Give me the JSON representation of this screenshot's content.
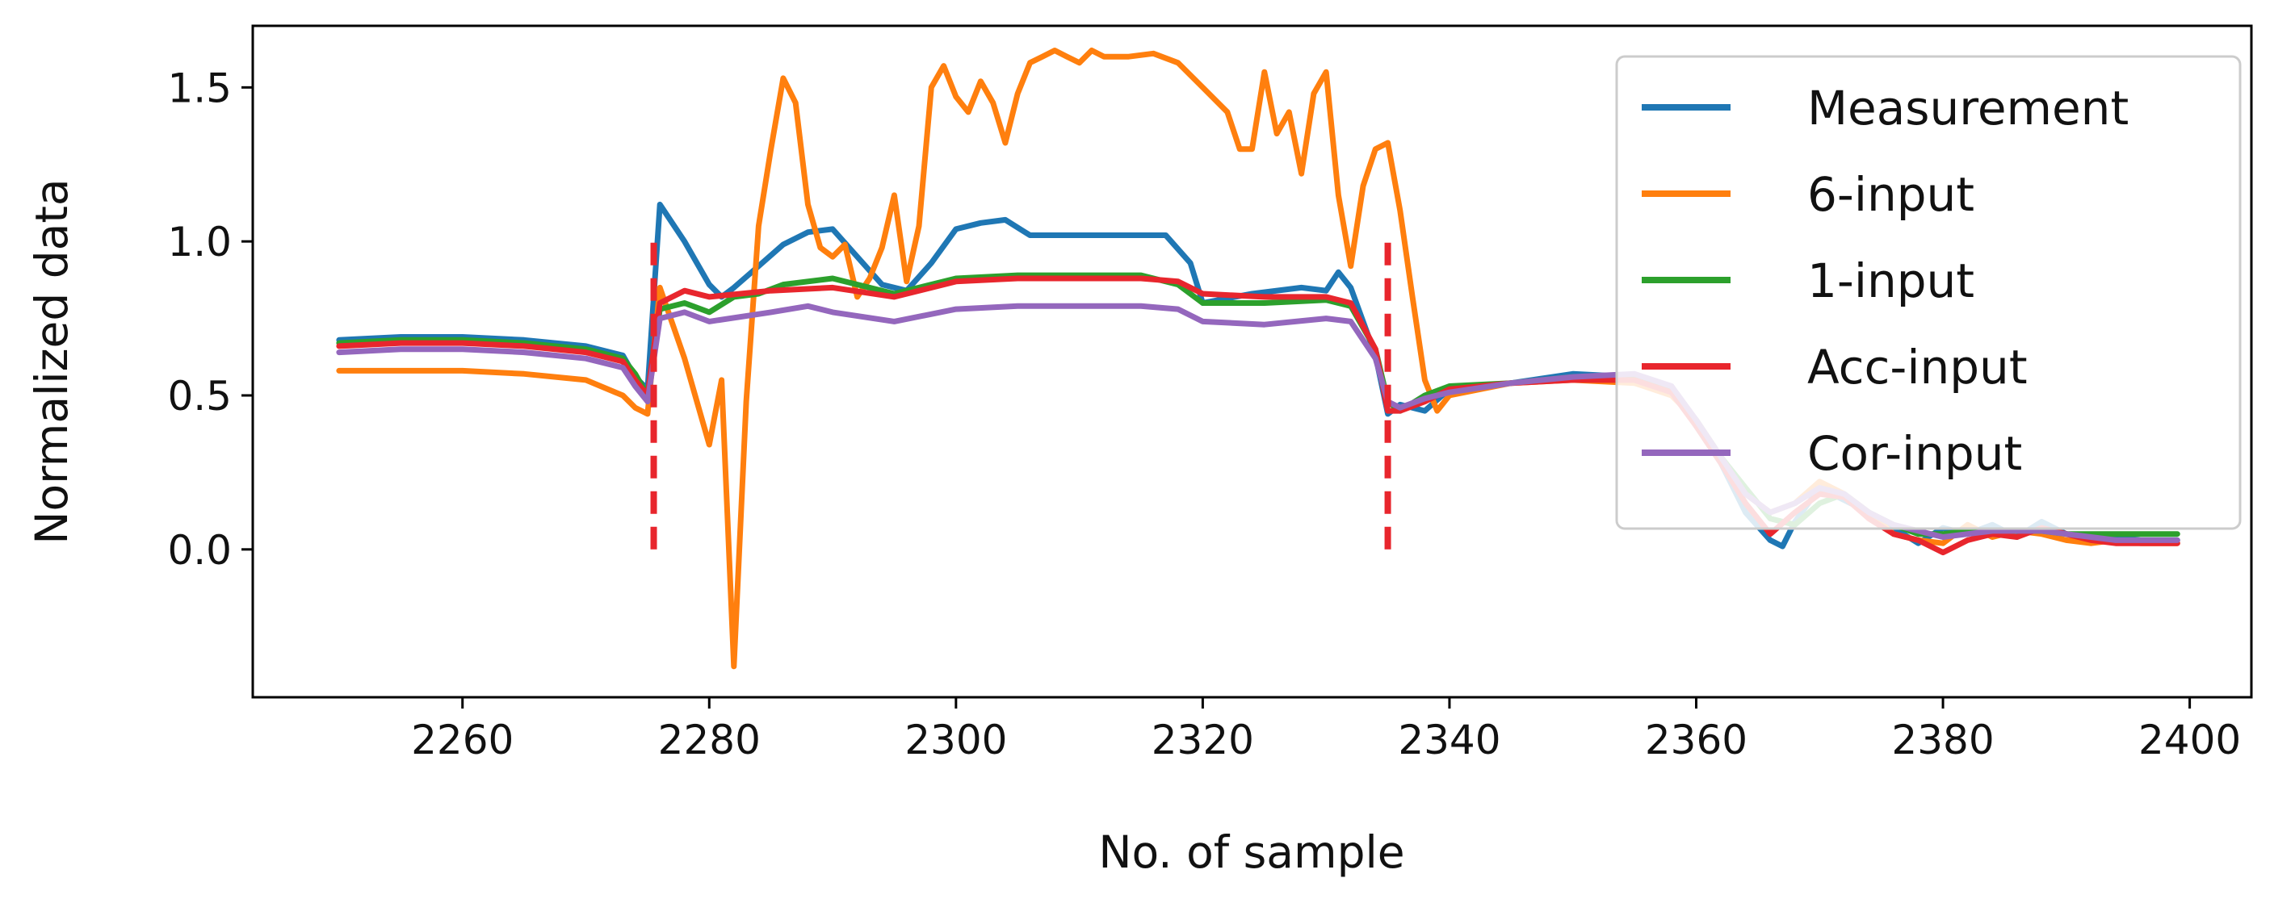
{
  "chart_data": {
    "type": "line",
    "title": "",
    "xlabel": "No. of sample",
    "ylabel": "Normalized data",
    "xlim": [
      2243,
      2405
    ],
    "ylim": [
      -0.48,
      1.7
    ],
    "xticks": [
      2260,
      2280,
      2300,
      2320,
      2340,
      2360,
      2380,
      2400
    ],
    "yticks": [
      0.0,
      0.5,
      1.0,
      1.5
    ],
    "ytick_labels": [
      "0.0",
      "0.5",
      "1.0",
      "1.5"
    ],
    "grid": false,
    "legend_position": "top-right",
    "colors": {
      "Measurement": "#1f77b4",
      "6-input": "#ff7f0e",
      "1-input": "#2ca02c",
      "Acc-input": "#e8262d",
      "Cor-input": "#9467bd",
      "markers": "#e8262d"
    },
    "series": [
      {
        "name": "Measurement",
        "x": [
          2250,
          2255,
          2260,
          2265,
          2270,
          2273,
          2274,
          2275,
          2276,
          2278,
          2280,
          2281,
          2282,
          2284,
          2286,
          2288,
          2290,
          2292,
          2294,
          2296,
          2298,
          2300,
          2302,
          2304,
          2306,
          2310,
          2314,
          2317,
          2319,
          2320,
          2324,
          2328,
          2330,
          2331,
          2332,
          2334,
          2335,
          2336,
          2338,
          2340,
          2345,
          2350,
          2355,
          2358,
          2360,
          2362,
          2364,
          2366,
          2367,
          2368,
          2370,
          2372,
          2374,
          2376,
          2378,
          2380,
          2382,
          2384,
          2386,
          2388,
          2390,
          2392,
          2394,
          2396,
          2399
        ],
        "y": [
          0.68,
          0.69,
          0.69,
          0.68,
          0.66,
          0.63,
          0.56,
          0.52,
          1.12,
          1.0,
          0.86,
          0.82,
          0.85,
          0.92,
          0.99,
          1.03,
          1.04,
          0.95,
          0.86,
          0.84,
          0.93,
          1.04,
          1.06,
          1.07,
          1.02,
          1.02,
          1.02,
          1.02,
          0.93,
          0.8,
          0.83,
          0.85,
          0.84,
          0.9,
          0.85,
          0.63,
          0.44,
          0.47,
          0.45,
          0.52,
          0.54,
          0.57,
          0.56,
          0.53,
          0.4,
          0.28,
          0.12,
          0.03,
          0.01,
          0.09,
          0.2,
          0.16,
          0.12,
          0.07,
          0.02,
          0.07,
          0.05,
          0.08,
          0.04,
          0.09,
          0.05,
          0.03,
          0.04,
          0.03,
          0.03
        ]
      },
      {
        "name": "6-input",
        "x": [
          2250,
          2255,
          2260,
          2265,
          2270,
          2273,
          2274,
          2275,
          2276,
          2278,
          2279,
          2280,
          2281,
          2282,
          2283,
          2284,
          2285,
          2286,
          2287,
          2288,
          2289,
          2290,
          2291,
          2292,
          2293,
          2294,
          2295,
          2296,
          2297,
          2298,
          2299,
          2300,
          2301,
          2302,
          2303,
          2304,
          2305,
          2306,
          2307,
          2308,
          2309,
          2310,
          2311,
          2312,
          2314,
          2316,
          2318,
          2320,
          2322,
          2323,
          2324,
          2325,
          2326,
          2327,
          2328,
          2329,
          2330,
          2331,
          2332,
          2333,
          2334,
          2335,
          2336,
          2337,
          2338,
          2339,
          2340,
          2345,
          2350,
          2355,
          2358,
          2360,
          2362,
          2364,
          2366,
          2368,
          2370,
          2372,
          2374,
          2376,
          2378,
          2380,
          2382,
          2384,
          2386,
          2388,
          2390,
          2392,
          2394,
          2396,
          2399
        ],
        "y": [
          0.58,
          0.58,
          0.58,
          0.57,
          0.55,
          0.5,
          0.46,
          0.44,
          0.85,
          0.62,
          0.48,
          0.34,
          0.55,
          -0.38,
          0.48,
          1.05,
          1.3,
          1.53,
          1.45,
          1.12,
          0.98,
          0.95,
          0.99,
          0.82,
          0.88,
          0.98,
          1.15,
          0.87,
          1.05,
          1.5,
          1.57,
          1.47,
          1.42,
          1.52,
          1.45,
          1.32,
          1.48,
          1.58,
          1.6,
          1.62,
          1.6,
          1.58,
          1.62,
          1.6,
          1.6,
          1.61,
          1.58,
          1.5,
          1.42,
          1.3,
          1.3,
          1.55,
          1.35,
          1.42,
          1.22,
          1.48,
          1.55,
          1.15,
          0.92,
          1.18,
          1.3,
          1.32,
          1.1,
          0.82,
          0.55,
          0.45,
          0.5,
          0.54,
          0.55,
          0.54,
          0.5,
          0.42,
          0.3,
          0.18,
          0.12,
          0.15,
          0.22,
          0.18,
          0.12,
          0.05,
          0.03,
          0.02,
          0.08,
          0.04,
          0.06,
          0.05,
          0.03,
          0.02,
          0.03,
          0.02,
          0.02
        ]
      },
      {
        "name": "1-input",
        "x": [
          2250,
          2255,
          2260,
          2265,
          2270,
          2273,
          2274,
          2275,
          2276,
          2278,
          2280,
          2282,
          2284,
          2286,
          2290,
          2295,
          2300,
          2305,
          2310,
          2315,
          2318,
          2320,
          2325,
          2330,
          2332,
          2334,
          2335,
          2336,
          2338,
          2340,
          2345,
          2350,
          2355,
          2358,
          2360,
          2362,
          2364,
          2366,
          2368,
          2370,
          2372,
          2374,
          2376,
          2378,
          2380,
          2382,
          2384,
          2386,
          2388,
          2390,
          2392,
          2394,
          2396,
          2399
        ],
        "y": [
          0.67,
          0.68,
          0.68,
          0.67,
          0.65,
          0.62,
          0.57,
          0.5,
          0.78,
          0.8,
          0.77,
          0.82,
          0.83,
          0.86,
          0.88,
          0.83,
          0.88,
          0.89,
          0.89,
          0.89,
          0.86,
          0.8,
          0.8,
          0.81,
          0.79,
          0.65,
          0.48,
          0.45,
          0.5,
          0.53,
          0.54,
          0.56,
          0.56,
          0.52,
          0.42,
          0.3,
          0.2,
          0.1,
          0.08,
          0.15,
          0.18,
          0.12,
          0.08,
          0.05,
          0.05,
          0.06,
          0.06,
          0.06,
          0.06,
          0.05,
          0.05,
          0.05,
          0.05,
          0.05
        ]
      },
      {
        "name": "Acc-input",
        "x": [
          2250,
          2255,
          2260,
          2265,
          2270,
          2273,
          2274,
          2275,
          2276,
          2278,
          2280,
          2285,
          2290,
          2295,
          2300,
          2305,
          2310,
          2315,
          2318,
          2320,
          2325,
          2330,
          2332,
          2334,
          2335,
          2336,
          2338,
          2340,
          2345,
          2350,
          2355,
          2358,
          2360,
          2362,
          2364,
          2366,
          2368,
          2370,
          2372,
          2374,
          2376,
          2378,
          2380,
          2382,
          2384,
          2386,
          2388,
          2390,
          2392,
          2394,
          2396,
          2399
        ],
        "y": [
          0.66,
          0.67,
          0.67,
          0.66,
          0.64,
          0.61,
          0.55,
          0.5,
          0.8,
          0.84,
          0.82,
          0.84,
          0.85,
          0.82,
          0.87,
          0.88,
          0.88,
          0.88,
          0.87,
          0.83,
          0.82,
          0.82,
          0.8,
          0.65,
          0.45,
          0.45,
          0.48,
          0.52,
          0.54,
          0.55,
          0.55,
          0.51,
          0.4,
          0.28,
          0.15,
          0.05,
          0.12,
          0.18,
          0.17,
          0.1,
          0.05,
          0.03,
          -0.01,
          0.03,
          0.05,
          0.04,
          0.07,
          0.05,
          0.03,
          0.02,
          0.02,
          0.02
        ]
      },
      {
        "name": "Cor-input",
        "x": [
          2250,
          2255,
          2260,
          2265,
          2270,
          2273,
          2274,
          2275,
          2276,
          2278,
          2280,
          2285,
          2288,
          2290,
          2295,
          2300,
          2305,
          2310,
          2315,
          2318,
          2320,
          2325,
          2330,
          2332,
          2334,
          2335,
          2336,
          2338,
          2340,
          2345,
          2350,
          2355,
          2358,
          2360,
          2362,
          2364,
          2366,
          2368,
          2370,
          2372,
          2374,
          2376,
          2378,
          2380,
          2382,
          2384,
          2386,
          2388,
          2390,
          2392,
          2394,
          2396,
          2399
        ],
        "y": [
          0.64,
          0.65,
          0.65,
          0.64,
          0.62,
          0.59,
          0.53,
          0.48,
          0.75,
          0.77,
          0.74,
          0.77,
          0.79,
          0.77,
          0.74,
          0.78,
          0.79,
          0.79,
          0.79,
          0.78,
          0.74,
          0.73,
          0.75,
          0.74,
          0.62,
          0.48,
          0.46,
          0.49,
          0.51,
          0.54,
          0.56,
          0.57,
          0.53,
          0.42,
          0.3,
          0.18,
          0.12,
          0.15,
          0.2,
          0.18,
          0.12,
          0.08,
          0.06,
          0.04,
          0.05,
          0.06,
          0.06,
          0.06,
          0.05,
          0.04,
          0.03,
          0.03,
          0.03
        ]
      }
    ],
    "markers": [
      {
        "x": 2275.5,
        "y_from": 0.0,
        "y_to": 1.0,
        "style": "dashed"
      },
      {
        "x": 2335.0,
        "y_from": 0.0,
        "y_to": 1.0,
        "style": "dashed"
      }
    ]
  }
}
